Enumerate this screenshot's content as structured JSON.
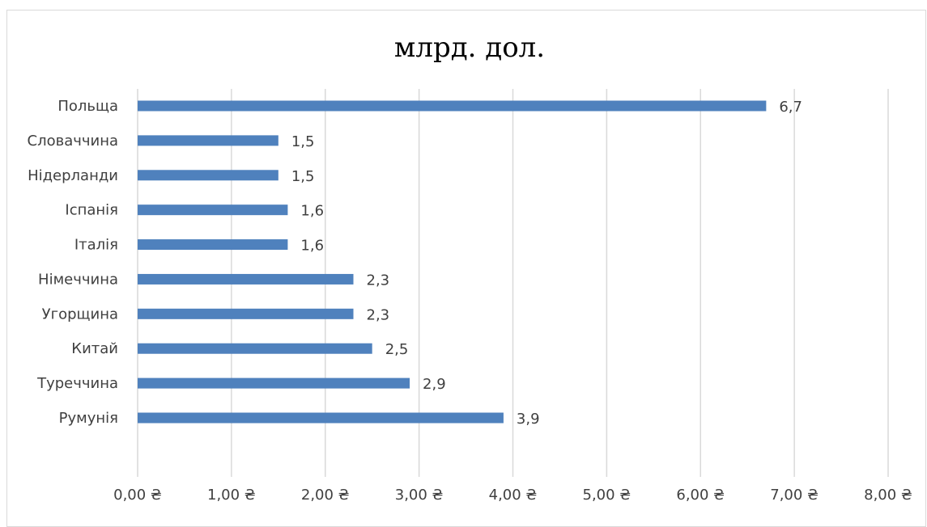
{
  "chart_data": {
    "type": "bar",
    "orientation": "horizontal",
    "title": "млрд. дол.",
    "xlabel": "",
    "ylabel": "",
    "categories": [
      "Польща",
      "Словаччина",
      "Нідерланди",
      "Іспанія",
      "Італія",
      "Німеччина",
      "Угорщина",
      "Китай",
      "Туреччина",
      "Румунія"
    ],
    "values": [
      6.7,
      1.5,
      1.5,
      1.6,
      1.6,
      2.3,
      2.3,
      2.5,
      2.9,
      3.9
    ],
    "value_labels": [
      "6,7",
      "1,5",
      "1,5",
      "1,6",
      "1,6",
      "2,3",
      "2,3",
      "2,5",
      "2,9",
      "3,9"
    ],
    "xlim": [
      0,
      8
    ],
    "x_ticks": [
      0,
      1,
      2,
      3,
      4,
      5,
      6,
      7,
      8
    ],
    "x_tick_labels": [
      "0,00 ₴",
      "1,00 ₴",
      "2,00 ₴",
      "3,00 ₴",
      "4,00 ₴",
      "5,00 ₴",
      "6,00 ₴",
      "7,00 ₴",
      "8,00 ₴"
    ],
    "grid": "vertical",
    "legend": "none",
    "bar_color": "#4f81bd",
    "grid_color": "#d9d9d9",
    "label_color": "#404040"
  }
}
